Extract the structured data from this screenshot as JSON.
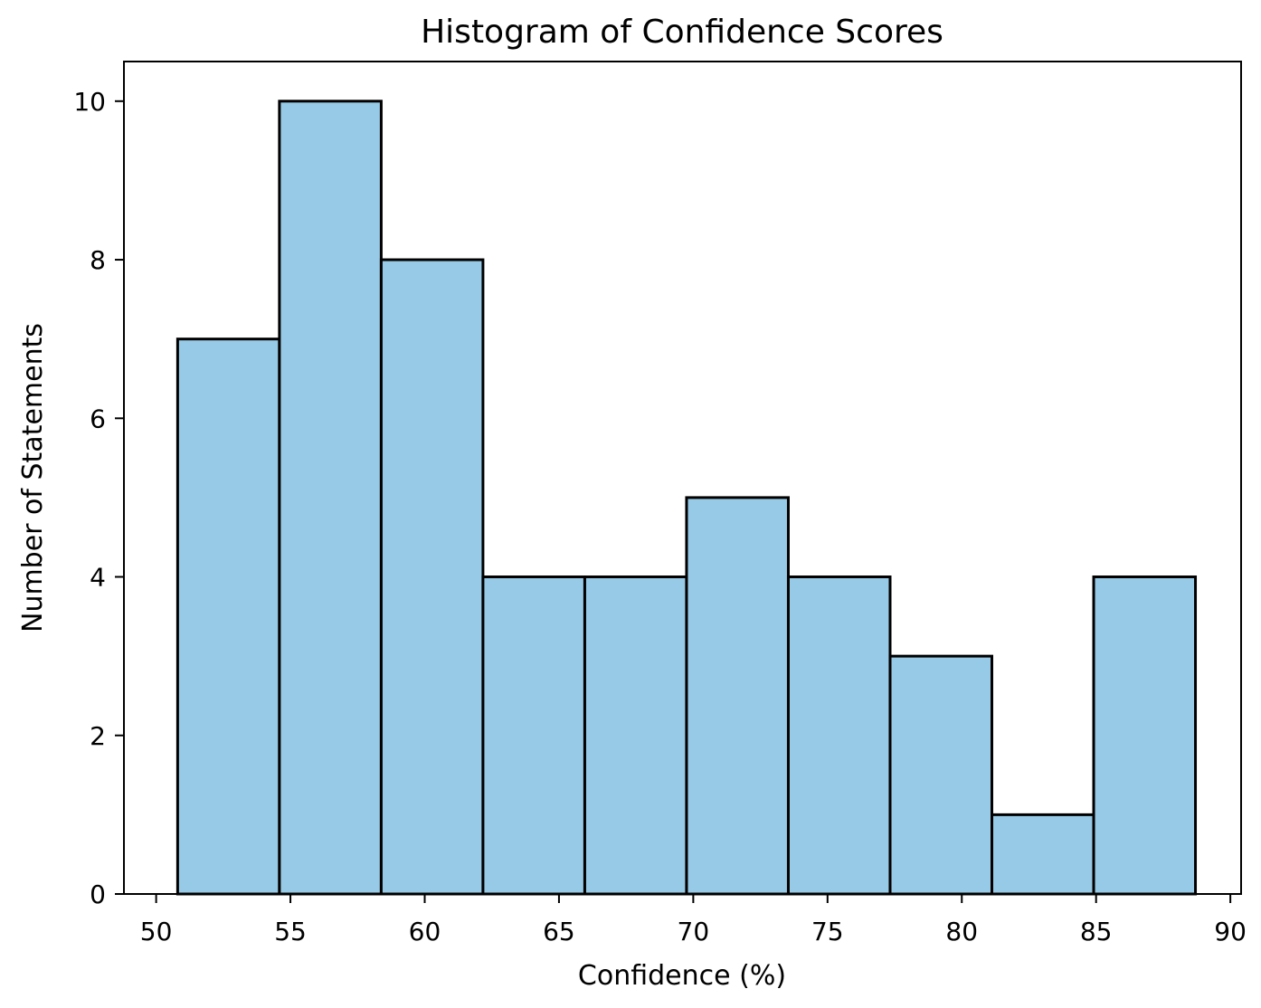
{
  "chart_data": {
    "type": "bar",
    "title": "Histogram of Confidence Scores",
    "xlabel": "Confidence (%)",
    "ylabel": "Number of Statements",
    "xlim": [
      48.8,
      90.4
    ],
    "ylim": [
      0,
      10.5
    ],
    "xticks": [
      50,
      55,
      60,
      65,
      70,
      75,
      80,
      85,
      90
    ],
    "yticks": [
      0,
      2,
      4,
      6,
      8,
      10
    ],
    "bin_edges": [
      50.8,
      54.59,
      58.38,
      62.17,
      65.96,
      69.75,
      73.54,
      77.33,
      81.12,
      84.91,
      88.7
    ],
    "values": [
      7,
      10,
      8,
      4,
      4,
      5,
      4,
      3,
      1,
      4
    ],
    "bar_color": "#97CAE6",
    "edge_color": "#000000",
    "grid": false,
    "legend": "none"
  }
}
